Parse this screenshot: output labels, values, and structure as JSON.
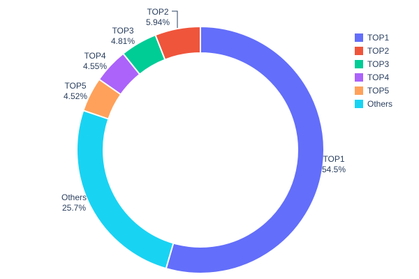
{
  "chart_data": {
    "type": "pie",
    "subtype": "donut",
    "hole": 0.785,
    "labels": [
      "TOP1",
      "TOP2",
      "TOP3",
      "TOP4",
      "TOP5",
      "Others"
    ],
    "values": [
      54.5,
      5.94,
      4.81,
      4.55,
      4.52,
      25.7
    ],
    "percent_labels": [
      "54.5%",
      "5.94%",
      "4.81%",
      "4.55%",
      "4.52%",
      "25.7%"
    ],
    "colors": [
      "#636efa",
      "#ef553b",
      "#00cc96",
      "#ab63fa",
      "#ffa15a",
      "#19d3f3"
    ],
    "clockwise_order": [
      "TOP1",
      "Others",
      "TOP5",
      "TOP4",
      "TOP3",
      "TOP2"
    ],
    "title": "",
    "legend": {
      "position": "top-right",
      "entries": [
        "TOP1",
        "TOP2",
        "TOP3",
        "TOP4",
        "TOP5",
        "Others"
      ]
    },
    "slice_border_color": "#ffffff",
    "text_color": "#2a3f5f",
    "background": "#ffffff",
    "labels_position": "outside",
    "leader_line_slice": "TOP2"
  }
}
